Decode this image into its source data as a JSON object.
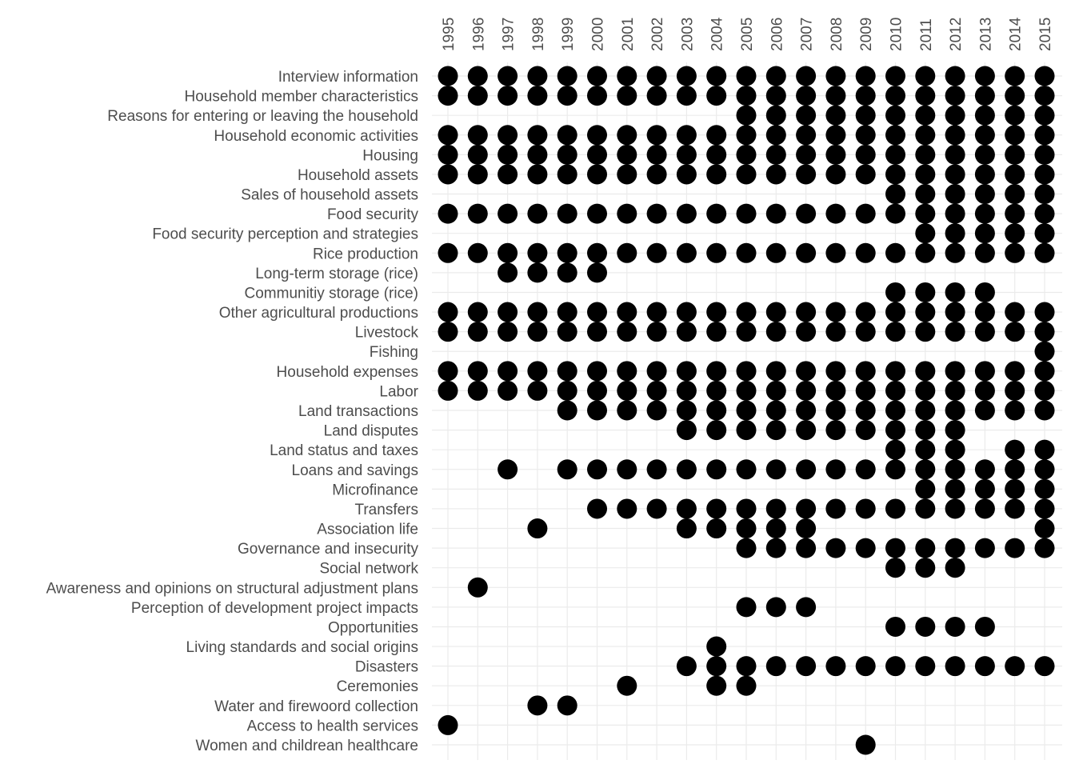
{
  "chart_data": {
    "type": "dot-matrix",
    "color": "#000000",
    "grid": true,
    "categories": [
      "1995",
      "1996",
      "1997",
      "1998",
      "1999",
      "2000",
      "2001",
      "2002",
      "2003",
      "2004",
      "2005",
      "2006",
      "2007",
      "2008",
      "2009",
      "2010",
      "2011",
      "2012",
      "2013",
      "2014",
      "2015"
    ],
    "series": [
      {
        "name": "Interview information",
        "values": [
          1,
          1,
          1,
          1,
          1,
          1,
          1,
          1,
          1,
          1,
          1,
          1,
          1,
          1,
          1,
          1,
          1,
          1,
          1,
          1,
          1
        ]
      },
      {
        "name": "Household member characteristics",
        "values": [
          1,
          1,
          1,
          1,
          1,
          1,
          1,
          1,
          1,
          1,
          1,
          1,
          1,
          1,
          1,
          1,
          1,
          1,
          1,
          1,
          1
        ]
      },
      {
        "name": "Reasons for entering or leaving the household",
        "values": [
          null,
          null,
          null,
          null,
          null,
          null,
          null,
          null,
          null,
          null,
          1,
          1,
          1,
          1,
          1,
          1,
          1,
          1,
          1,
          1,
          1
        ]
      },
      {
        "name": "Household economic activities",
        "values": [
          1,
          1,
          1,
          1,
          1,
          1,
          1,
          1,
          1,
          1,
          1,
          1,
          1,
          1,
          1,
          1,
          1,
          1,
          1,
          1,
          1
        ]
      },
      {
        "name": "Housing",
        "values": [
          1,
          1,
          1,
          1,
          1,
          1,
          1,
          1,
          1,
          1,
          1,
          1,
          1,
          1,
          1,
          1,
          1,
          1,
          1,
          1,
          1
        ]
      },
      {
        "name": "Household assets",
        "values": [
          1,
          1,
          1,
          1,
          1,
          1,
          1,
          1,
          1,
          1,
          1,
          1,
          1,
          1,
          1,
          1,
          1,
          1,
          1,
          1,
          1
        ]
      },
      {
        "name": "Sales of household assets",
        "values": [
          null,
          null,
          null,
          null,
          null,
          null,
          null,
          null,
          null,
          null,
          null,
          null,
          null,
          null,
          null,
          1,
          1,
          1,
          1,
          1,
          1
        ]
      },
      {
        "name": "Food security",
        "values": [
          1,
          1,
          1,
          1,
          1,
          1,
          1,
          1,
          1,
          1,
          1,
          1,
          1,
          1,
          1,
          1,
          1,
          1,
          1,
          1,
          1
        ]
      },
      {
        "name": "Food security perception and strategies",
        "values": [
          null,
          null,
          null,
          null,
          null,
          null,
          null,
          null,
          null,
          null,
          null,
          null,
          null,
          null,
          null,
          null,
          1,
          1,
          1,
          1,
          1
        ]
      },
      {
        "name": "Rice production",
        "values": [
          1,
          1,
          1,
          1,
          1,
          1,
          1,
          1,
          1,
          1,
          1,
          1,
          1,
          1,
          1,
          1,
          1,
          1,
          1,
          1,
          1
        ]
      },
      {
        "name": "Long-term storage (rice)",
        "values": [
          null,
          null,
          1,
          1,
          1,
          1,
          null,
          null,
          null,
          null,
          null,
          null,
          null,
          null,
          null,
          null,
          null,
          null,
          null,
          null,
          null
        ]
      },
      {
        "name": "Communitiy storage (rice)",
        "values": [
          null,
          null,
          null,
          null,
          null,
          null,
          null,
          null,
          null,
          null,
          null,
          null,
          null,
          null,
          null,
          1,
          1,
          1,
          1,
          null,
          null
        ]
      },
      {
        "name": "Other agricultural productions",
        "values": [
          1,
          1,
          1,
          1,
          1,
          1,
          1,
          1,
          1,
          1,
          1,
          1,
          1,
          1,
          1,
          1,
          1,
          1,
          1,
          1,
          1
        ]
      },
      {
        "name": "Livestock",
        "values": [
          1,
          1,
          1,
          1,
          1,
          1,
          1,
          1,
          1,
          1,
          1,
          1,
          1,
          1,
          1,
          1,
          1,
          1,
          1,
          1,
          1
        ]
      },
      {
        "name": "Fishing",
        "values": [
          null,
          null,
          null,
          null,
          null,
          null,
          null,
          null,
          null,
          null,
          null,
          null,
          null,
          null,
          null,
          null,
          null,
          null,
          null,
          null,
          1
        ]
      },
      {
        "name": "Household expenses",
        "values": [
          1,
          1,
          1,
          1,
          1,
          1,
          1,
          1,
          1,
          1,
          1,
          1,
          1,
          1,
          1,
          1,
          1,
          1,
          1,
          1,
          1
        ]
      },
      {
        "name": "Labor",
        "values": [
          1,
          1,
          1,
          1,
          1,
          1,
          1,
          1,
          1,
          1,
          1,
          1,
          1,
          1,
          1,
          1,
          1,
          1,
          1,
          1,
          1
        ]
      },
      {
        "name": "Land transactions",
        "values": [
          null,
          null,
          null,
          null,
          1,
          1,
          1,
          1,
          1,
          1,
          1,
          1,
          1,
          1,
          1,
          1,
          1,
          1,
          1,
          1,
          1
        ]
      },
      {
        "name": "Land disputes",
        "values": [
          null,
          null,
          null,
          null,
          null,
          null,
          null,
          null,
          1,
          1,
          1,
          1,
          1,
          1,
          1,
          1,
          1,
          1,
          null,
          null,
          null
        ]
      },
      {
        "name": "Land status and taxes",
        "values": [
          null,
          null,
          null,
          null,
          null,
          null,
          null,
          null,
          null,
          null,
          null,
          null,
          null,
          null,
          null,
          1,
          1,
          1,
          null,
          1,
          1
        ]
      },
      {
        "name": "Loans and savings",
        "values": [
          null,
          null,
          1,
          null,
          1,
          1,
          1,
          1,
          1,
          1,
          1,
          1,
          1,
          1,
          1,
          1,
          1,
          1,
          1,
          1,
          1
        ]
      },
      {
        "name": "Microfinance",
        "values": [
          null,
          null,
          null,
          null,
          null,
          null,
          null,
          null,
          null,
          null,
          null,
          null,
          null,
          null,
          null,
          null,
          1,
          1,
          1,
          1,
          1
        ]
      },
      {
        "name": "Transfers",
        "values": [
          null,
          null,
          null,
          null,
          null,
          1,
          1,
          1,
          1,
          1,
          1,
          1,
          1,
          1,
          1,
          1,
          1,
          1,
          1,
          1,
          1
        ]
      },
      {
        "name": "Association life",
        "values": [
          null,
          null,
          null,
          1,
          null,
          null,
          null,
          null,
          1,
          1,
          1,
          1,
          1,
          null,
          null,
          null,
          null,
          null,
          null,
          null,
          1
        ]
      },
      {
        "name": "Governance and insecurity",
        "values": [
          null,
          null,
          null,
          null,
          null,
          null,
          null,
          null,
          null,
          null,
          1,
          1,
          1,
          1,
          1,
          1,
          1,
          1,
          1,
          1,
          1
        ]
      },
      {
        "name": "Social network",
        "values": [
          null,
          null,
          null,
          null,
          null,
          null,
          null,
          null,
          null,
          null,
          null,
          null,
          null,
          null,
          null,
          1,
          1,
          1,
          null,
          null,
          null
        ]
      },
      {
        "name": "Awareness and opinions on structural adjustment plans",
        "values": [
          null,
          1,
          null,
          null,
          null,
          null,
          null,
          null,
          null,
          null,
          null,
          null,
          null,
          null,
          null,
          null,
          null,
          null,
          null,
          null,
          null
        ]
      },
      {
        "name": "Perception of development project impacts",
        "values": [
          null,
          null,
          null,
          null,
          null,
          null,
          null,
          null,
          null,
          null,
          1,
          1,
          1,
          null,
          null,
          null,
          null,
          null,
          null,
          null,
          null
        ]
      },
      {
        "name": "Opportunities",
        "values": [
          null,
          null,
          null,
          null,
          null,
          null,
          null,
          null,
          null,
          null,
          null,
          null,
          null,
          null,
          null,
          1,
          1,
          1,
          1,
          null,
          null
        ]
      },
      {
        "name": "Living standards and social origins",
        "values": [
          null,
          null,
          null,
          null,
          null,
          null,
          null,
          null,
          null,
          1,
          null,
          null,
          null,
          null,
          null,
          null,
          null,
          null,
          null,
          null,
          null
        ]
      },
      {
        "name": "Disasters",
        "values": [
          null,
          null,
          null,
          null,
          null,
          null,
          null,
          null,
          1,
          1,
          1,
          1,
          1,
          1,
          1,
          1,
          1,
          1,
          1,
          1,
          1
        ]
      },
      {
        "name": "Ceremonies",
        "values": [
          null,
          null,
          null,
          null,
          null,
          null,
          1,
          null,
          null,
          1,
          1,
          null,
          null,
          null,
          null,
          null,
          null,
          null,
          null,
          null,
          null
        ]
      },
      {
        "name": "Water and firewoord collection",
        "values": [
          null,
          null,
          null,
          1,
          1,
          null,
          null,
          null,
          null,
          null,
          null,
          null,
          null,
          null,
          null,
          null,
          null,
          null,
          null,
          null,
          null
        ]
      },
      {
        "name": "Access to health services",
        "values": [
          1,
          null,
          null,
          null,
          null,
          null,
          null,
          null,
          null,
          null,
          null,
          null,
          null,
          null,
          null,
          null,
          null,
          null,
          null,
          null,
          null
        ]
      },
      {
        "name": "Women and childrean healthcare",
        "values": [
          null,
          null,
          null,
          null,
          null,
          null,
          null,
          null,
          null,
          null,
          null,
          null,
          null,
          null,
          1,
          null,
          null,
          null,
          null,
          null,
          null
        ]
      }
    ]
  }
}
